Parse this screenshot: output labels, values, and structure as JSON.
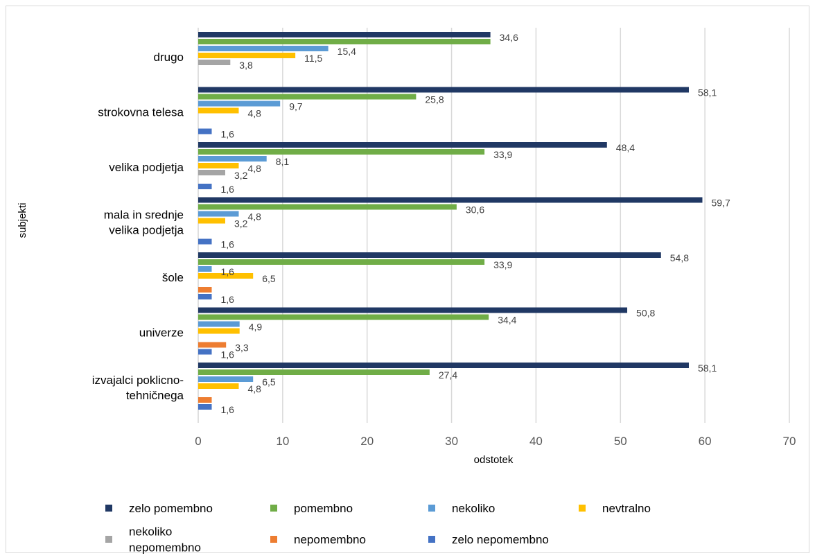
{
  "chart_data": {
    "type": "bar",
    "orientation": "horizontal",
    "title": "",
    "xlabel": "odstotek",
    "ylabel": "subjekti",
    "xlim": [
      0,
      70
    ],
    "x_ticks": [
      "0",
      "10",
      "20",
      "30",
      "40",
      "50",
      "60",
      "70"
    ],
    "grid": "vertical",
    "legend_position": "bottom",
    "categories": [
      [
        "drugo"
      ],
      [
        "strokovna telesa"
      ],
      [
        "velika podjetja"
      ],
      [
        "mala in srednje",
        "velika podjetja"
      ],
      [
        "šole"
      ],
      [
        "univerze"
      ],
      [
        "izvajalci poklicno-",
        "tehničnega"
      ]
    ],
    "series": [
      {
        "name": "zelo pomembno",
        "color": "#203864",
        "values": [
          34.6,
          58.1,
          48.4,
          59.7,
          54.8,
          50.8,
          58.1
        ],
        "labels": [
          "34,6",
          "58,1",
          "48,4",
          "59,7",
          "54,8",
          "50,8",
          "58,1"
        ]
      },
      {
        "name": "pomembno",
        "color": "#70AD47",
        "values": [
          34.6,
          25.8,
          33.9,
          30.6,
          33.9,
          34.4,
          27.4
        ],
        "labels": [
          "",
          "25,8",
          "33,9",
          "30,6",
          "33,9",
          "34,4",
          "27,4"
        ]
      },
      {
        "name": "nekoliko",
        "color": "#5B9BD5",
        "values": [
          15.4,
          9.7,
          8.1,
          4.8,
          1.6,
          4.9,
          6.5
        ],
        "labels": [
          "15,4",
          "9,7",
          "8,1",
          "4,8",
          "1,6",
          "4,9",
          "6,5"
        ]
      },
      {
        "name": "nevtralno",
        "color": "#FFC000",
        "values": [
          11.5,
          4.8,
          4.8,
          3.2,
          6.5,
          4.9,
          4.8
        ],
        "labels": [
          "11,5",
          "4,8",
          "4,8",
          "3,2",
          "6,5",
          "",
          "4,8"
        ]
      },
      {
        "name": "nekoliko nepomembno",
        "color": "#A5A5A5",
        "values": [
          3.8,
          0,
          3.2,
          0,
          0,
          0,
          0
        ],
        "labels": [
          "3,8",
          "",
          "3,2",
          "",
          "",
          "",
          ""
        ]
      },
      {
        "name": "nepomembno",
        "color": "#ED7D31",
        "values": [
          0,
          0,
          0,
          0,
          1.6,
          3.3,
          1.6
        ],
        "labels": [
          "",
          "",
          "",
          "",
          "",
          "3,3",
          ""
        ]
      },
      {
        "name": "zelo nepomembno",
        "color": "#4472C4",
        "values": [
          0,
          1.6,
          1.6,
          1.6,
          1.6,
          1.6,
          1.6
        ],
        "labels": [
          "",
          "1,6",
          "1,6",
          "1,6",
          "1,6",
          "1,6",
          "1,6"
        ]
      }
    ],
    "legend": [
      {
        "lines": [
          "zelo pomembno"
        ],
        "color": "#203864"
      },
      {
        "lines": [
          "pomembno"
        ],
        "color": "#70AD47"
      },
      {
        "lines": [
          "nekoliko"
        ],
        "color": "#5B9BD5"
      },
      {
        "lines": [
          "nevtralno"
        ],
        "color": "#FFC000"
      },
      {
        "lines": [
          "nekoliko",
          "nepomembno"
        ],
        "color": "#A5A5A5"
      },
      {
        "lines": [
          "nepomembno"
        ],
        "color": "#ED7D31"
      },
      {
        "lines": [
          "zelo nepomembno"
        ],
        "color": "#4472C4"
      }
    ]
  }
}
